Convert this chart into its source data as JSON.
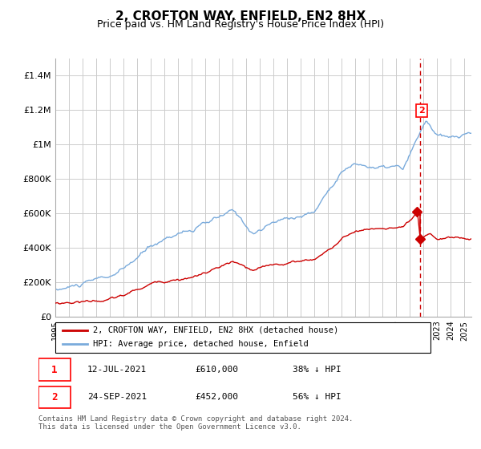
{
  "title": "2, CROFTON WAY, ENFIELD, EN2 8HX",
  "subtitle": "Price paid vs. HM Land Registry's House Price Index (HPI)",
  "title_fontsize": 11,
  "subtitle_fontsize": 9,
  "hpi_color": "#7aabdc",
  "price_color": "#cc0000",
  "dashed_line_color": "#cc0000",
  "grid_color": "#cccccc",
  "background_color": "#ffffff",
  "ylim": [
    0,
    1500000
  ],
  "yticks": [
    0,
    200000,
    400000,
    600000,
    800000,
    1000000,
    1200000,
    1400000
  ],
  "ytick_labels": [
    "£0",
    "£200K",
    "£400K",
    "£600K",
    "£800K",
    "£1M",
    "£1.2M",
    "£1.4M"
  ],
  "year_start": 1995,
  "year_end": 2025,
  "transaction1_date": 2021.53,
  "transaction1_price": 610000,
  "transaction2_date": 2021.73,
  "transaction2_price": 452000,
  "legend_line1": "2, CROFTON WAY, ENFIELD, EN2 8HX (detached house)",
  "legend_line2": "HPI: Average price, detached house, Enfield",
  "table_row1": [
    "1",
    "12-JUL-2021",
    "£610,000",
    "38% ↓ HPI"
  ],
  "table_row2": [
    "2",
    "24-SEP-2021",
    "£452,000",
    "56% ↓ HPI"
  ],
  "footnote": "Contains HM Land Registry data © Crown copyright and database right 2024.\nThis data is licensed under the Open Government Licence v3.0."
}
